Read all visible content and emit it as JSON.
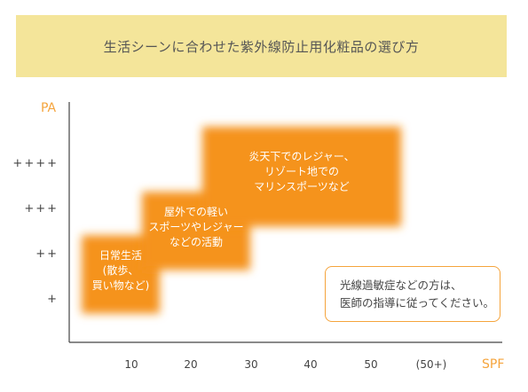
{
  "title": "生活シーンに合わせた紫外線防止用化粧品の選び方",
  "note": {
    "line1": "光線過敏症などの方は、",
    "line2": "医師の指導に従ってください。"
  },
  "colors": {
    "banner": "#f4e59a",
    "axis_label": "#f5a43c",
    "block": "#f5931f",
    "note_border": "#f5a43c"
  },
  "chart_data": {
    "type": "area",
    "xlabel": "SPF",
    "ylabel": "PA",
    "x_ticks": [
      "10",
      "20",
      "30",
      "40",
      "50",
      "(50+)"
    ],
    "y_ticks": [
      "+",
      "++",
      "+++",
      "++++"
    ],
    "regions": [
      {
        "lines": [
          "日常生活",
          "(散歩、",
          "買い物など)"
        ],
        "spf": [
          0,
          15
        ],
        "pa": [
          0.5,
          2.3
        ]
      },
      {
        "lines": [
          "屋外での軽い",
          "スポーツやレジャー",
          "などの活動"
        ],
        "spf": [
          10,
          30
        ],
        "pa": [
          1.5,
          3.3
        ]
      },
      {
        "lines": [
          "炎天下でのレジャー、",
          "リゾート地での",
          "マリンスポーツなど"
        ],
        "spf": [
          20,
          55
        ],
        "pa": [
          2.5,
          4.8
        ]
      }
    ]
  }
}
